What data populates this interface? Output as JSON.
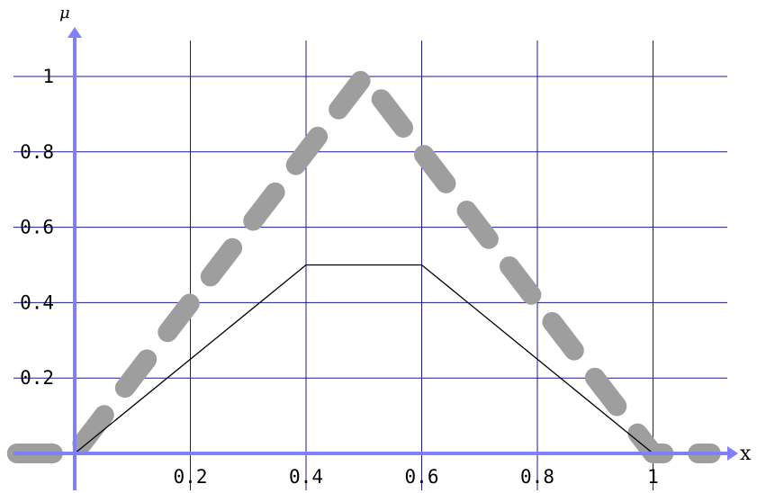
{
  "chart_data": {
    "type": "line",
    "xlabel": "x",
    "ylabel": "μ",
    "xlim": [
      -0.1,
      1.2
    ],
    "ylim": [
      -0.05,
      1.2
    ],
    "grid": true,
    "x_ticks": [
      0.2,
      0.4,
      0.6,
      0.8,
      1
    ],
    "y_ticks": [
      0.2,
      0.4,
      0.6,
      0.8,
      1
    ],
    "x_tick_labels": [
      "0.2",
      "0.4",
      "0.6",
      "0.8",
      "1"
    ],
    "y_tick_labels": [
      "0.2",
      "0.4",
      "0.6",
      "0.8",
      "1"
    ],
    "series": [
      {
        "style": "thick-dashed",
        "color": "#9e9e9e",
        "x": [
          -0.1,
          0,
          0.5,
          1,
          1.1
        ],
        "y": [
          0,
          0,
          1,
          0,
          0
        ]
      },
      {
        "style": "thin-solid",
        "color": "#000000",
        "x": [
          -0.1,
          0,
          0.25,
          0.4,
          0.6,
          0.75,
          1,
          1.1
        ],
        "y": [
          0,
          0,
          0.3125,
          0.5,
          0.5,
          0.3125,
          0,
          0
        ]
      }
    ],
    "colors": {
      "grid": "#1a1a8c",
      "axis": "#8080ff"
    }
  }
}
